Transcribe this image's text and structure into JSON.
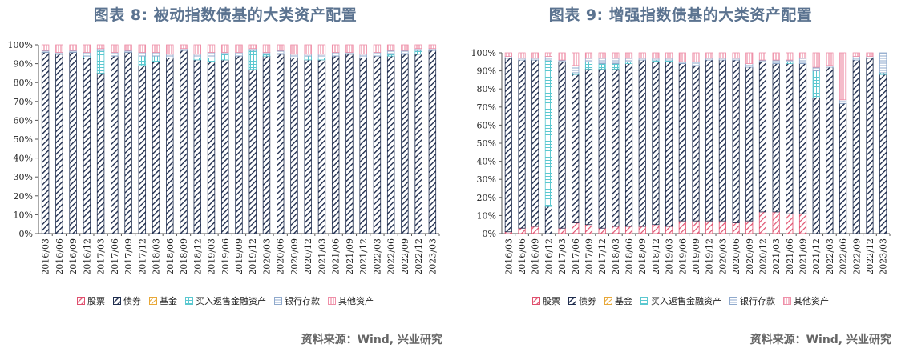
{
  "source_note": "资料来源：Wind, 兴业研究",
  "colors": {
    "stock": "#e0506e",
    "bond": "#1f2d4e",
    "fund": "#e8a838",
    "repo": "#5bc8d0",
    "deposit": "#8fa9cc",
    "other": "#ef8fa8"
  },
  "chart_data": [
    {
      "type": "bar",
      "stacked": true,
      "title": "图表 8:  被动指数债基的大类资产配置",
      "ylim": [
        0,
        100
      ],
      "yticks": [
        "0%",
        "10%",
        "20%",
        "30%",
        "40%",
        "50%",
        "60%",
        "70%",
        "80%",
        "90%",
        "100%"
      ],
      "categories": [
        "2016/03",
        "2016/06",
        "2016/09",
        "2016/12",
        "2017/03",
        "2017/06",
        "2017/09",
        "2017/12",
        "2018/03",
        "2018/06",
        "2018/09",
        "2018/12",
        "2019/03",
        "2019/06",
        "2019/09",
        "2019/12",
        "2020/03",
        "2020/06",
        "2020/09",
        "2020/12",
        "2021/03",
        "2021/06",
        "2021/09",
        "2021/12",
        "2022/03",
        "2022/06",
        "2022/09",
        "2022/12",
        "2023/03"
      ],
      "legend": [
        "股票",
        "债券",
        "基金",
        "买入返售金融资产",
        "银行存款",
        "其他资产"
      ],
      "series": [
        {
          "name": "股票",
          "values": [
            0,
            0,
            0,
            0,
            0,
            0,
            0,
            0,
            0,
            0,
            0,
            0,
            0,
            0,
            0,
            0,
            0,
            0,
            0,
            0,
            0,
            0,
            0,
            0,
            0,
            0,
            0,
            0,
            0
          ]
        },
        {
          "name": "债券",
          "values": [
            96,
            95,
            96,
            93,
            85,
            94,
            96,
            89,
            91,
            93,
            97,
            92,
            91,
            92,
            94,
            87,
            94,
            95,
            93,
            92,
            92,
            94,
            95,
            93,
            94,
            94,
            95,
            95,
            97
          ]
        },
        {
          "name": "基金",
          "values": [
            0,
            0,
            0,
            0,
            0,
            0,
            0,
            0,
            0,
            0,
            0,
            0,
            0,
            0,
            0,
            0,
            0,
            0,
            0,
            0,
            0,
            0,
            0,
            0,
            0,
            0,
            0,
            0,
            0
          ]
        },
        {
          "name": "买入返售金融资产",
          "values": [
            0,
            0,
            0,
            1,
            12,
            0,
            0,
            5,
            3,
            0,
            0,
            1,
            2,
            3,
            0,
            10,
            1,
            0,
            0,
            2,
            1,
            0,
            0,
            0,
            0,
            1,
            0,
            2,
            0
          ]
        },
        {
          "name": "银行存款",
          "values": [
            1,
            1,
            1,
            2,
            1,
            2,
            1,
            2,
            2,
            2,
            1,
            2,
            3,
            1,
            2,
            1,
            1,
            2,
            2,
            1,
            2,
            2,
            1,
            2,
            2,
            2,
            2,
            1,
            1
          ]
        },
        {
          "name": "其他资产",
          "values": [
            3,
            4,
            3,
            4,
            2,
            4,
            3,
            4,
            4,
            5,
            2,
            5,
            4,
            4,
            4,
            2,
            4,
            3,
            5,
            5,
            5,
            4,
            4,
            5,
            4,
            3,
            3,
            2,
            2
          ]
        }
      ]
    },
    {
      "type": "bar",
      "stacked": true,
      "title": "图表 9: 增强指数债基的大类资产配置",
      "ylim": [
        0,
        100
      ],
      "yticks": [
        "0%",
        "10%",
        "20%",
        "30%",
        "40%",
        "50%",
        "60%",
        "70%",
        "80%",
        "90%",
        "100%"
      ],
      "categories": [
        "2016/03",
        "2016/06",
        "2016/09",
        "2016/12",
        "2017/03",
        "2017/06",
        "2017/09",
        "2017/12",
        "2018/03",
        "2018/06",
        "2018/09",
        "2018/12",
        "2019/03",
        "2019/06",
        "2019/09",
        "2019/12",
        "2020/03",
        "2020/06",
        "2020/09",
        "2020/12",
        "2021/03",
        "2021/06",
        "2021/09",
        "2021/12",
        "2022/03",
        "2022/06",
        "2022/09",
        "2022/12",
        "2023/03"
      ],
      "legend": [
        "股票",
        "债券",
        "基金",
        "买入返售金融资产",
        "银行存款",
        "其他资产"
      ],
      "series": [
        {
          "name": "股票",
          "values": [
            1,
            3,
            4,
            0,
            3,
            6,
            5,
            3,
            4,
            4,
            4,
            5,
            4,
            7,
            7,
            7,
            7,
            6,
            7,
            12,
            12,
            11,
            11,
            0,
            0,
            0,
            0,
            0,
            0
          ]
        },
        {
          "name": "债券",
          "values": [
            96,
            93,
            92,
            15,
            92,
            82,
            86,
            88,
            87,
            90,
            92,
            90,
            91,
            87,
            86,
            89,
            89,
            90,
            85,
            83,
            82,
            83,
            83,
            75,
            92,
            72,
            96,
            97,
            88
          ]
        },
        {
          "name": "基金",
          "values": [
            0,
            0,
            0,
            0,
            0,
            0,
            0,
            0,
            0,
            0,
            0,
            0,
            0,
            0,
            0,
            0,
            0,
            0,
            0,
            0,
            0,
            0,
            0,
            0,
            0,
            0,
            0,
            0,
            0
          ]
        },
        {
          "name": "买入返售金融资产",
          "values": [
            0,
            0,
            0,
            81,
            0,
            1,
            4,
            3,
            3,
            1,
            0,
            1,
            1,
            0,
            0,
            0,
            0,
            0,
            0,
            0,
            0,
            1,
            0,
            15,
            0,
            0,
            0,
            0,
            1
          ]
        },
        {
          "name": "银行存款",
          "values": [
            1,
            1,
            1,
            2,
            1,
            4,
            2,
            3,
            3,
            2,
            1,
            1,
            1,
            1,
            2,
            1,
            1,
            1,
            2,
            1,
            2,
            1,
            3,
            2,
            1,
            2,
            2,
            1,
            11
          ]
        },
        {
          "name": "其他资产",
          "values": [
            2,
            3,
            3,
            2,
            4,
            7,
            3,
            3,
            3,
            3,
            3,
            3,
            3,
            5,
            5,
            3,
            3,
            3,
            6,
            4,
            4,
            4,
            3,
            8,
            7,
            26,
            2,
            2,
            0
          ]
        }
      ]
    }
  ]
}
